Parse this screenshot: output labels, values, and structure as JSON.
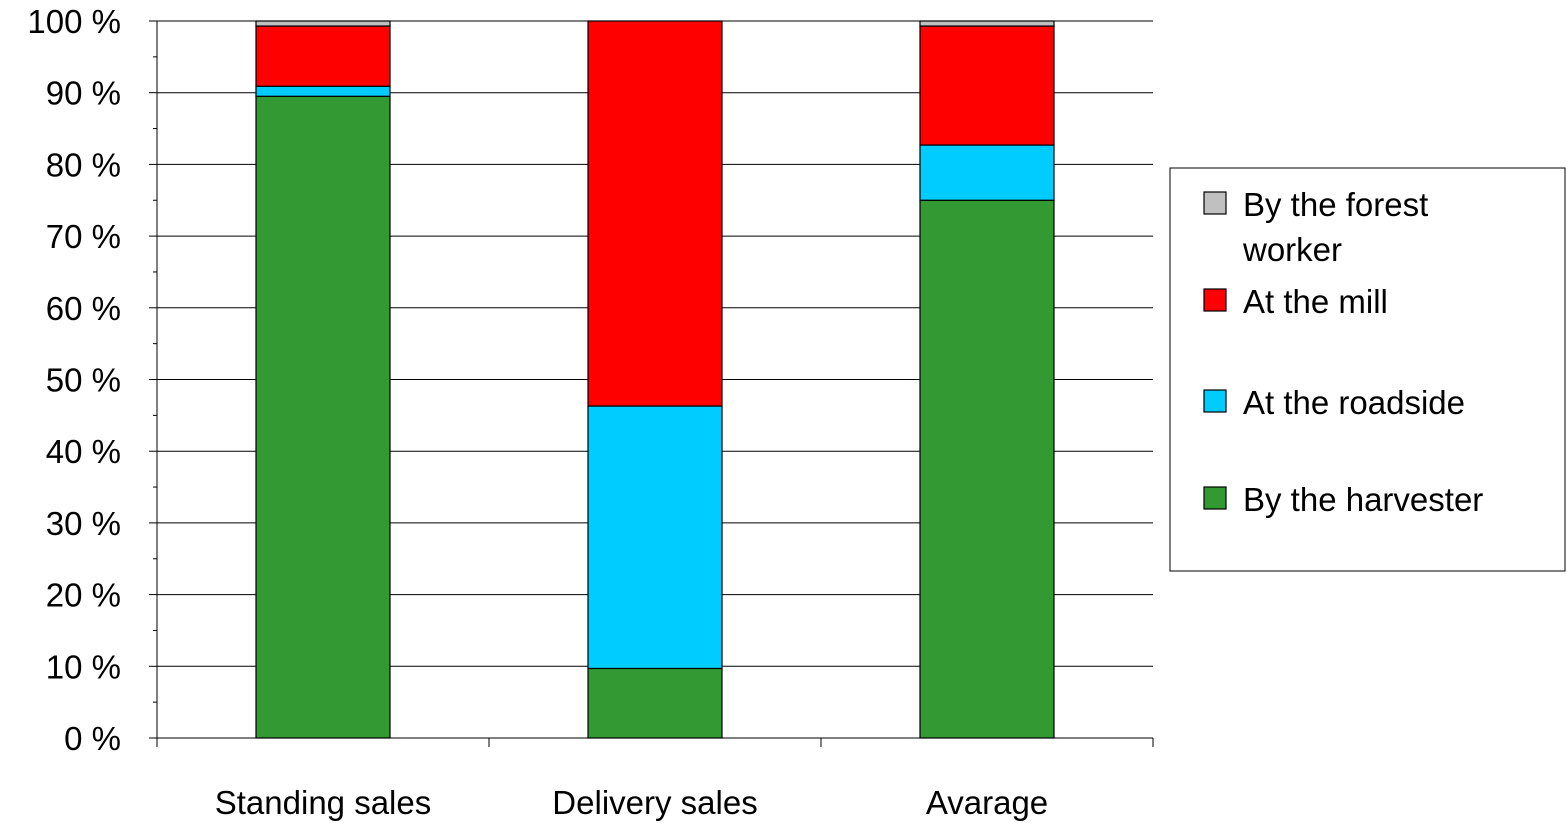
{
  "chart_data": {
    "type": "bar",
    "stacked": true,
    "percent": true,
    "categories": [
      "Standing sales",
      "Delivery sales",
      "Avarage"
    ],
    "series": [
      {
        "name": "By the harvester",
        "color": "#339933",
        "values": [
          89.5,
          9.7,
          75.0
        ]
      },
      {
        "name": "At the roadside",
        "color": "#00CCFF",
        "values": [
          1.4,
          36.6,
          7.7
        ]
      },
      {
        "name": "At the mill",
        "color": "#FF0000",
        "values": [
          8.4,
          53.7,
          16.6
        ]
      },
      {
        "name": "By the forest worker",
        "color": "#C0C0C0",
        "values": [
          0.7,
          0.0,
          0.7
        ]
      }
    ],
    "ylim": [
      0,
      100
    ],
    "yticks": [
      "0 %",
      "10 %",
      "20 %",
      "30 %",
      "40 %",
      "50 %",
      "60 %",
      "70 %",
      "80 %",
      "90 %",
      "100 %"
    ],
    "grid": true,
    "legend_position": "right",
    "legend_entries": [
      {
        "label_lines": [
          "By the forest",
          "worker"
        ],
        "color": "#C0C0C0"
      },
      {
        "label_lines": [
          "At the mill"
        ],
        "color": "#FF0000"
      },
      {
        "label_lines": [
          "At the roadside"
        ],
        "color": "#00CCFF"
      },
      {
        "label_lines": [
          "By the harvester"
        ],
        "color": "#339933"
      }
    ]
  }
}
